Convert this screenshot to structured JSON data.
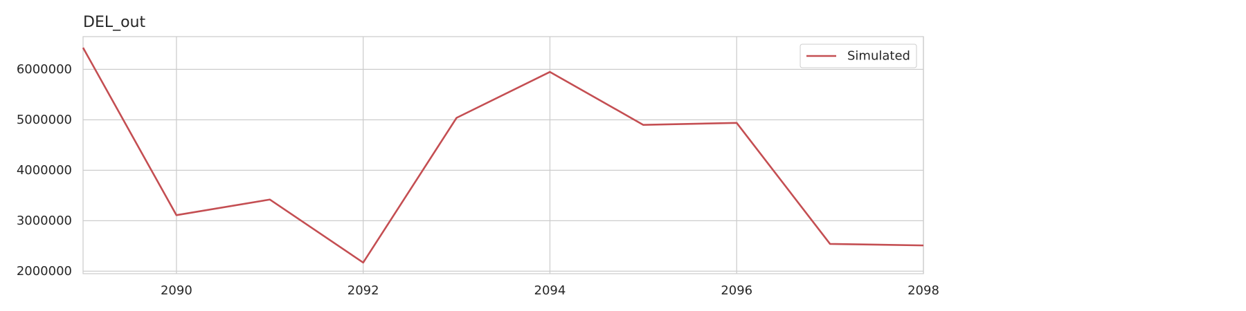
{
  "chart_data": {
    "type": "line",
    "title": "DEL_out",
    "xlabel": "",
    "ylabel": "",
    "x": [
      2089,
      2090,
      2091,
      2092,
      2093,
      2094,
      2095,
      2096,
      2097,
      2098
    ],
    "series": [
      {
        "name": "Simulated",
        "color": "#c44e52",
        "values": [
          6430000,
          3110000,
          3420000,
          2170000,
          5040000,
          5950000,
          4900000,
          4940000,
          2540000,
          2510000
        ]
      }
    ],
    "xlim": [
      2089,
      2098
    ],
    "ylim": [
      1950000,
      6650000
    ],
    "xticks": [
      2090,
      2092,
      2094,
      2096,
      2098
    ],
    "yticks": [
      2000000,
      3000000,
      4000000,
      5000000,
      6000000
    ],
    "grid": true,
    "legend": "top-right"
  }
}
